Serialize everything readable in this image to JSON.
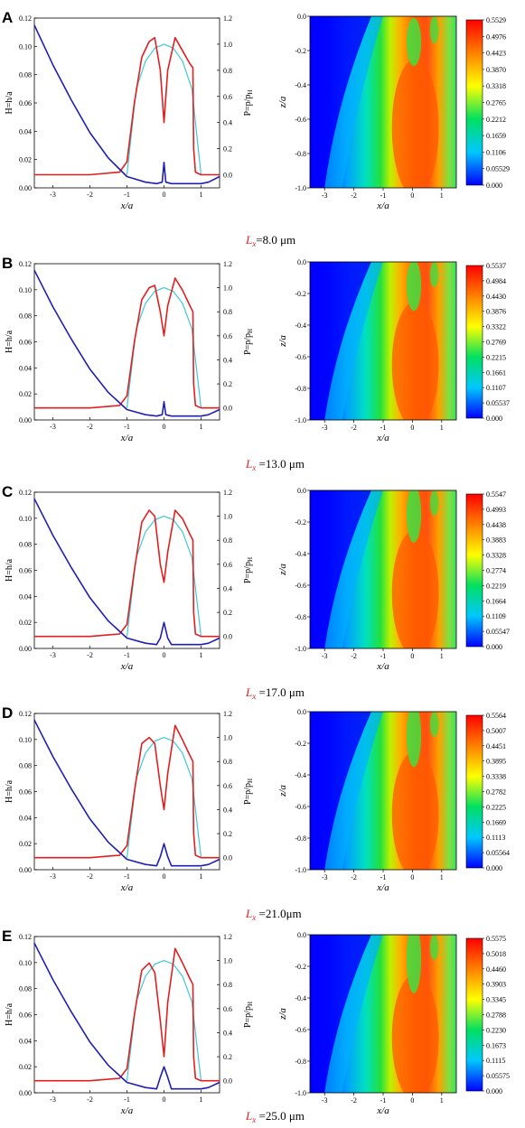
{
  "panels": [
    {
      "letter": "A",
      "caption_prefix": "L",
      "caption_sub": "x",
      "caption_value": "=8.0 μm",
      "colorbar_ticks": [
        "0.5529",
        "0.4976",
        "0.4423",
        "0.3870",
        "0.3318",
        "0.2765",
        "0.2212",
        "0.1659",
        "0.1106",
        "0.05529",
        "0.000"
      ]
    },
    {
      "letter": "B",
      "caption_prefix": "L",
      "caption_sub": "x",
      "caption_value": " =13.0 μm",
      "colorbar_ticks": [
        "0.5537",
        "0.4984",
        "0.4430",
        "0.3876",
        "0.3322",
        "0.2769",
        "0.2215",
        "0.1661",
        "0.1107",
        "0.05537",
        "0.000"
      ]
    },
    {
      "letter": "C",
      "caption_prefix": "L",
      "caption_sub": "x",
      "caption_value": " =17.0 μm",
      "colorbar_ticks": [
        "0.5547",
        "0.4993",
        "0.4438",
        "0.3883",
        "0.3328",
        "0.2774",
        "0.2219",
        "0.1664",
        "0.1109",
        "0.05547",
        "0.000"
      ]
    },
    {
      "letter": "D",
      "caption_prefix": "L",
      "caption_sub": "x",
      "caption_value": " =21.0μm",
      "colorbar_ticks": [
        "0.5564",
        "0.5007",
        "0.4451",
        "0.3895",
        "0.3338",
        "0.2782",
        "0.2225",
        "0.1669",
        "0.1113",
        "0.05564",
        "0.000"
      ]
    },
    {
      "letter": "E",
      "caption_prefix": "L",
      "caption_sub": "x",
      "caption_value": " =25.0 μm",
      "colorbar_ticks": [
        "0.5575",
        "0.5018",
        "0.4460",
        "0.3903",
        "0.3345",
        "0.2788",
        "0.2230",
        "0.1673",
        "0.1115",
        "0.05575",
        "0.000"
      ]
    }
  ],
  "line_plot_axes": {
    "ylabel_left": "H=h/a",
    "ylabel_right": "P=p/p",
    "ylabel_right_sub": "H",
    "xlabel": "x/a",
    "xticks": [
      "-3",
      "-2",
      "-1",
      "0",
      "1"
    ],
    "yticks_left": [
      "0.00",
      "0.02",
      "0.04",
      "0.06",
      "0.08",
      "0.10",
      "0.12"
    ],
    "yticks_right": [
      "0.0",
      "0.2",
      "0.4",
      "0.6",
      "0.8",
      "1.0",
      "1.2"
    ]
  },
  "contour_axes": {
    "xlabel": "x/a",
    "ylabel": "z/a",
    "xticks": [
      "-3",
      "-2",
      "-1",
      "0",
      "1"
    ],
    "yticks": [
      "0.0",
      "-0.2",
      "-0.4",
      "-0.6",
      "-0.8",
      "-1.0"
    ]
  },
  "colors": {
    "film_thickness": "#1f1fb4",
    "pressure": "#e02020",
    "hertz_pressure": "#3ec8d8",
    "caption_symbol": "#e02020"
  },
  "chart_data": [
    {
      "type": "line",
      "panel": "A",
      "xlim": [
        -3.5,
        1.5
      ],
      "ylim_left": [
        0,
        0.12
      ],
      "ylim_right": [
        -0.1,
        1.2
      ],
      "series": [
        {
          "axis": "left",
          "x": [
            -3.5,
            -3,
            -2.5,
            -2,
            -1.5,
            -1,
            -0.5,
            -0.2,
            -0.05,
            0,
            0.05,
            0.2,
            0.5,
            0.8,
            1.0,
            1.2,
            1.5
          ],
          "y": [
            0.115,
            0.087,
            0.062,
            0.039,
            0.021,
            0.008,
            0.004,
            0.003,
            0.004,
            0.018,
            0.004,
            0.003,
            0.003,
            0.003,
            0.003,
            0.004,
            0.008
          ]
        },
        {
          "axis": "right",
          "x": [
            -3.5,
            -2,
            -1.2,
            -1,
            -0.8,
            -0.6,
            -0.4,
            -0.25,
            -0.1,
            0,
            0.1,
            0.3,
            0.5,
            0.7,
            0.78,
            0.8,
            0.85,
            1.0,
            1.5
          ],
          "y": [
            0.0,
            0.0,
            0.02,
            0.1,
            0.55,
            0.9,
            1.02,
            1.05,
            0.8,
            0.4,
            0.8,
            1.05,
            0.95,
            0.85,
            0.82,
            0.2,
            0.02,
            0.0,
            0.0
          ]
        },
        {
          "axis": "right",
          "x": [
            -1,
            -0.75,
            -0.5,
            -0.25,
            0,
            0.25,
            0.5,
            0.75,
            1
          ],
          "y": [
            0.0,
            0.66,
            0.87,
            0.97,
            1.0,
            0.97,
            0.87,
            0.66,
            0.0
          ]
        }
      ]
    },
    {
      "type": "line",
      "panel": "B",
      "xlim": [
        -3.5,
        1.5
      ],
      "ylim_left": [
        0,
        0.12
      ],
      "ylim_right": [
        -0.1,
        1.2
      ],
      "series": [
        {
          "axis": "left",
          "x": [
            -3.5,
            -3,
            -2.5,
            -2,
            -1.5,
            -1,
            -0.5,
            -0.2,
            -0.05,
            0,
            0.05,
            0.2,
            0.5,
            0.8,
            1.0,
            1.2,
            1.5
          ],
          "y": [
            0.115,
            0.087,
            0.062,
            0.039,
            0.021,
            0.008,
            0.004,
            0.003,
            0.004,
            0.014,
            0.004,
            0.003,
            0.003,
            0.003,
            0.003,
            0.004,
            0.008
          ]
        },
        {
          "axis": "right",
          "x": [
            -3.5,
            -2,
            -1.2,
            -1,
            -0.8,
            -0.6,
            -0.4,
            -0.25,
            -0.1,
            0,
            0.1,
            0.3,
            0.5,
            0.7,
            0.78,
            0.8,
            0.85,
            1.0,
            1.5
          ],
          "y": [
            0.0,
            0.0,
            0.02,
            0.1,
            0.55,
            0.9,
            1.0,
            1.02,
            0.8,
            0.6,
            0.85,
            1.08,
            0.98,
            0.85,
            0.8,
            0.2,
            0.02,
            0.0,
            0.0
          ]
        },
        {
          "axis": "right",
          "x": [
            -1,
            -0.75,
            -0.5,
            -0.25,
            0,
            0.25,
            0.5,
            0.75,
            1
          ],
          "y": [
            0.0,
            0.66,
            0.87,
            0.97,
            1.0,
            0.97,
            0.87,
            0.66,
            0.0
          ]
        }
      ]
    },
    {
      "type": "line",
      "panel": "C",
      "xlim": [
        -3.5,
        1.5
      ],
      "ylim_left": [
        0,
        0.12
      ],
      "ylim_right": [
        -0.1,
        1.2
      ],
      "series": [
        {
          "axis": "left",
          "x": [
            -3.5,
            -3,
            -2.5,
            -2,
            -1.5,
            -1,
            -0.5,
            -0.2,
            -0.1,
            0,
            0.1,
            0.2,
            0.5,
            0.8,
            1.0,
            1.2,
            1.5
          ],
          "y": [
            0.115,
            0.087,
            0.062,
            0.039,
            0.021,
            0.008,
            0.004,
            0.003,
            0.008,
            0.02,
            0.008,
            0.003,
            0.003,
            0.003,
            0.003,
            0.004,
            0.008
          ]
        },
        {
          "axis": "right",
          "x": [
            -3.5,
            -2,
            -1.2,
            -1,
            -0.8,
            -0.6,
            -0.4,
            -0.25,
            -0.1,
            0,
            0.1,
            0.3,
            0.5,
            0.7,
            0.78,
            0.8,
            0.85,
            1.0,
            1.5
          ],
          "y": [
            0.0,
            0.0,
            0.02,
            0.1,
            0.55,
            0.95,
            1.05,
            1.0,
            0.6,
            0.45,
            0.7,
            1.05,
            0.98,
            0.85,
            0.8,
            0.2,
            0.02,
            0.0,
            0.0
          ]
        },
        {
          "axis": "right",
          "x": [
            -1,
            -0.75,
            -0.5,
            -0.25,
            0,
            0.25,
            0.5,
            0.75,
            1
          ],
          "y": [
            0.0,
            0.66,
            0.87,
            0.97,
            1.0,
            0.97,
            0.87,
            0.66,
            0.0
          ]
        }
      ]
    },
    {
      "type": "line",
      "panel": "D",
      "xlim": [
        -3.5,
        1.5
      ],
      "ylim_left": [
        0,
        0.12
      ],
      "ylim_right": [
        -0.1,
        1.2
      ],
      "series": [
        {
          "axis": "left",
          "x": [
            -3.5,
            -3,
            -2.5,
            -2,
            -1.5,
            -1,
            -0.5,
            -0.2,
            -0.1,
            0,
            0.1,
            0.2,
            0.5,
            0.8,
            1.0,
            1.2,
            1.5
          ],
          "y": [
            0.115,
            0.087,
            0.062,
            0.039,
            0.021,
            0.008,
            0.004,
            0.003,
            0.01,
            0.02,
            0.01,
            0.003,
            0.003,
            0.003,
            0.003,
            0.004,
            0.008
          ]
        },
        {
          "axis": "right",
          "x": [
            -3.5,
            -2,
            -1.2,
            -1,
            -0.8,
            -0.6,
            -0.4,
            -0.25,
            -0.1,
            0,
            0.1,
            0.3,
            0.5,
            0.7,
            0.78,
            0.8,
            0.85,
            1.0,
            1.5
          ],
          "y": [
            0.0,
            0.0,
            0.02,
            0.1,
            0.55,
            0.95,
            1.0,
            0.95,
            0.6,
            0.4,
            0.7,
            1.1,
            0.98,
            0.85,
            0.8,
            0.2,
            0.02,
            0.0,
            0.0
          ]
        },
        {
          "axis": "right",
          "x": [
            -1,
            -0.75,
            -0.5,
            -0.25,
            0,
            0.25,
            0.5,
            0.75,
            1
          ],
          "y": [
            0.0,
            0.66,
            0.87,
            0.97,
            1.0,
            0.97,
            0.87,
            0.66,
            0.0
          ]
        }
      ]
    },
    {
      "type": "line",
      "panel": "E",
      "xlim": [
        -3.5,
        1.5
      ],
      "ylim_left": [
        0,
        0.12
      ],
      "ylim_right": [
        -0.1,
        1.2
      ],
      "series": [
        {
          "axis": "left",
          "x": [
            -3.5,
            -3,
            -2.5,
            -2,
            -1.5,
            -1,
            -0.5,
            -0.2,
            -0.1,
            0,
            0.1,
            0.2,
            0.5,
            0.8,
            1.0,
            1.2,
            1.5
          ],
          "y": [
            0.115,
            0.087,
            0.062,
            0.039,
            0.021,
            0.008,
            0.004,
            0.003,
            0.012,
            0.02,
            0.012,
            0.003,
            0.003,
            0.003,
            0.003,
            0.004,
            0.008
          ]
        },
        {
          "axis": "right",
          "x": [
            -3.5,
            -2,
            -1.2,
            -1,
            -0.8,
            -0.6,
            -0.4,
            -0.25,
            -0.1,
            0,
            0.1,
            0.3,
            0.5,
            0.7,
            0.78,
            0.8,
            0.85,
            1.0,
            1.5
          ],
          "y": [
            0.0,
            0.0,
            0.02,
            0.1,
            0.55,
            0.92,
            0.98,
            0.9,
            0.5,
            0.2,
            0.65,
            1.1,
            0.98,
            0.85,
            0.8,
            0.2,
            0.02,
            0.0,
            0.0
          ]
        },
        {
          "axis": "right",
          "x": [
            -1,
            -0.75,
            -0.5,
            -0.25,
            0,
            0.25,
            0.5,
            0.75,
            1
          ],
          "y": [
            0.0,
            0.66,
            0.87,
            0.97,
            1.0,
            0.97,
            0.87,
            0.66,
            0.0
          ]
        }
      ]
    },
    {
      "type": "heatmap",
      "panels": [
        "A",
        "B",
        "C",
        "D",
        "E"
      ],
      "xlim": [
        -3.5,
        1.5
      ],
      "ylim": [
        -1.0,
        0.0
      ],
      "colorscale": [
        "#0000ff",
        "#00c8ff",
        "#00e060",
        "#ffff00",
        "#ff8000",
        "#ff0000"
      ]
    }
  ]
}
